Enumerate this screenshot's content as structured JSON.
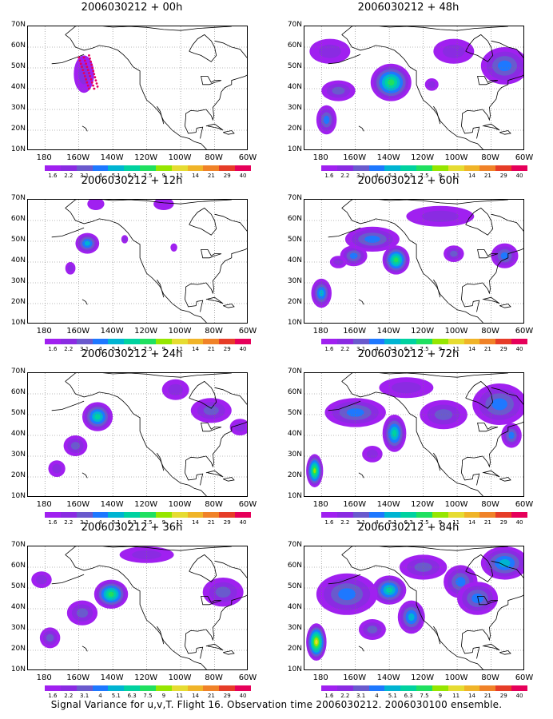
{
  "figure": {
    "caption": "Signal Variance for u,v,T. Flight 16. Observation time 2006030212. 2006030100 ensemble."
  },
  "panels": [
    {
      "title": "2006030212 + 00h",
      "hour": 0
    },
    {
      "title": "2006030212 + 48h",
      "hour": 48
    },
    {
      "title": "2006030212 + 12h",
      "hour": 12
    },
    {
      "title": "2006030212 + 60h",
      "hour": 60
    },
    {
      "title": "2006030212 + 24h",
      "hour": 24
    },
    {
      "title": "2006030212 + 72h",
      "hour": 72
    },
    {
      "title": "2006030212 + 36h",
      "hour": 36
    },
    {
      "title": "2006030212 + 84h",
      "hour": 84
    }
  ],
  "axes": {
    "lat_labels": [
      "70N",
      "60N",
      "50N",
      "40N",
      "30N",
      "20N",
      "10N"
    ],
    "lon_labels": [
      "180",
      "160W",
      "140W",
      "120W",
      "100W",
      "80W",
      "60W"
    ],
    "lat_range": [
      10,
      70
    ],
    "lon_range": [
      -190,
      -60
    ],
    "grid": true
  },
  "colorbar": {
    "levels": [
      "1.6",
      "2.2",
      "3.1",
      "4",
      "5.1",
      "6.3",
      "7.5",
      "9",
      "11",
      "14",
      "21",
      "29",
      "40"
    ],
    "colors": [
      "#a020f0",
      "#8a2be2",
      "#6a5acd",
      "#1e78ff",
      "#00b4d2",
      "#00d2a0",
      "#20e060",
      "#96e600",
      "#e6dc32",
      "#f0b428",
      "#f08228",
      "#e63c28",
      "#e6005a"
    ]
  },
  "flight_track": {
    "legs": [
      [
        [
          -160,
          55
        ],
        [
          -154,
          40
        ]
      ],
      [
        [
          -157,
          55
        ],
        [
          -151,
          40
        ]
      ],
      [
        [
          -154,
          56
        ],
        [
          -149,
          41
        ]
      ]
    ]
  }
}
